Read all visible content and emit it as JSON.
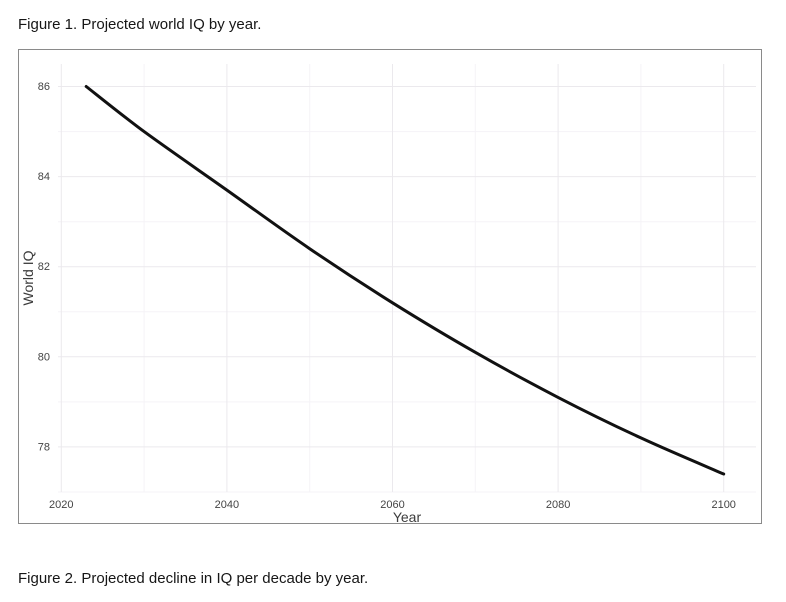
{
  "figure1": {
    "caption": "Figure 1. Projected world IQ by year."
  },
  "figure2": {
    "caption": "Figure 2. Projected decline in IQ per decade by year."
  },
  "chart_data": {
    "type": "line",
    "title": "",
    "xlabel": "Year",
    "ylabel": "World IQ",
    "x_ticks": [
      2020,
      2040,
      2060,
      2080,
      2100
    ],
    "y_ticks": [
      78,
      80,
      82,
      84,
      86
    ],
    "minor_x_ticks": [
      2030,
      2050,
      2070,
      2090
    ],
    "minor_y_ticks": [
      77,
      79,
      81,
      83,
      85
    ],
    "xlim": [
      2019.6,
      2103.9
    ],
    "ylim": [
      77.0,
      86.5
    ],
    "grid": true,
    "legend": "none",
    "series": [
      {
        "name": "Projected world IQ",
        "points": [
          [
            2023,
            86.0
          ],
          [
            2030,
            85.0
          ],
          [
            2040,
            83.7
          ],
          [
            2050,
            82.4
          ],
          [
            2060,
            81.2
          ],
          [
            2070,
            80.1
          ],
          [
            2080,
            79.1
          ],
          [
            2090,
            78.2
          ],
          [
            2100,
            77.4
          ]
        ]
      }
    ],
    "colors": {
      "line": "#111111",
      "major_grid": "#ebe9ed",
      "minor_grid": "#f5f3f7",
      "tick_label": "#444444",
      "axis_title": "#3c3c3c",
      "frame_border": "#8a8a8a",
      "background": "#ffffff"
    }
  }
}
